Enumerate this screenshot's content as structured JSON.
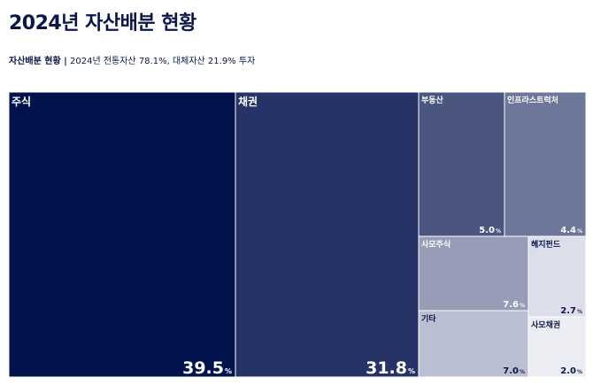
{
  "page": {
    "title": "2024년 자산배분 현황",
    "subtitle_strong": "자산배분 현황 |",
    "subtitle_rest": " 2024년 전통자산 78.1%, 대체자산 21.9% 투자"
  },
  "chart_data": {
    "type": "treemap",
    "unit": "%",
    "items": [
      {
        "name": "주식",
        "value": 39.5,
        "label": "39.5",
        "color": "#01124d"
      },
      {
        "name": "채권",
        "value": 31.8,
        "label": "31.8",
        "color": "#273366"
      },
      {
        "name": "부동산",
        "value": 5.0,
        "label": "5.0",
        "color": "#4b5680"
      },
      {
        "name": "인프라스트럭처",
        "value": 4.4,
        "label": "4.4",
        "color": "#6d7799"
      },
      {
        "name": "사모주식",
        "value": 7.6,
        "label": "7.6",
        "color": "#979db7"
      },
      {
        "name": "헤지펀드",
        "value": 2.7,
        "label": "2.7",
        "color": "#dcdee9"
      },
      {
        "name": "기타",
        "value": 7.0,
        "label": "7.0",
        "color": "#bbbfd2"
      },
      {
        "name": "사모채권",
        "value": 2.0,
        "label": "2.0",
        "color": "#ecedf3"
      }
    ]
  }
}
